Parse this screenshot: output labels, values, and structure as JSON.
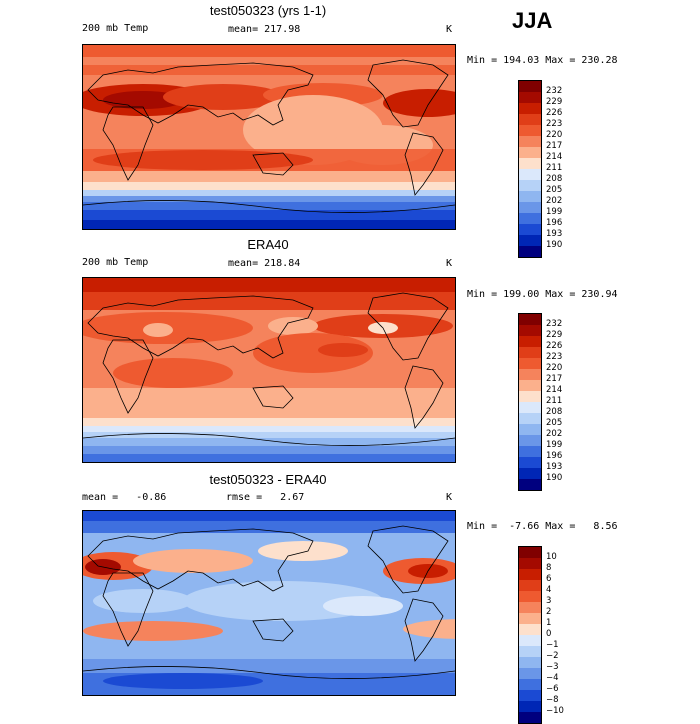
{
  "season": "JJA",
  "panels": [
    {
      "title": "test050323 (yrs 1-1)",
      "left_label": "200 mb Temp",
      "center_label": "mean= 217.98",
      "units": "K",
      "minmax": "Min = 194.03 Max = 230.28",
      "levels": [
        "232",
        "229",
        "226",
        "223",
        "220",
        "217",
        "214",
        "211",
        "208",
        "205",
        "202",
        "199",
        "196",
        "193",
        "190"
      ],
      "colors": [
        "#800000",
        "#a40a00",
        "#c81e00",
        "#e03e18",
        "#ee5a30",
        "#f5835c",
        "#fbb08c",
        "#fde0cc",
        "#dbe8fb",
        "#b6d2f7",
        "#8fb6f0",
        "#6a96e8",
        "#3f70df",
        "#1b4ad3",
        "#0026b5",
        "#00007f"
      ]
    },
    {
      "title": "ERA40",
      "left_label": "200 mb Temp",
      "center_label": "mean= 218.84",
      "units": "K",
      "minmax": "Min = 199.00 Max = 230.94",
      "levels": [
        "232",
        "229",
        "226",
        "223",
        "220",
        "217",
        "214",
        "211",
        "208",
        "205",
        "202",
        "199",
        "196",
        "193",
        "190"
      ],
      "colors": [
        "#800000",
        "#a40a00",
        "#c81e00",
        "#e03e18",
        "#ee5a30",
        "#f5835c",
        "#fbb08c",
        "#fde0cc",
        "#dbe8fb",
        "#b6d2f7",
        "#8fb6f0",
        "#6a96e8",
        "#3f70df",
        "#1b4ad3",
        "#0026b5",
        "#00007f"
      ]
    },
    {
      "title": "test050323 - ERA40",
      "left_label": "mean =   -0.86",
      "center_label": "rmse =   2.67",
      "units": "K",
      "minmax": "Min =  -7.66 Max =   8.56",
      "levels": [
        "10",
        "8",
        "6",
        "4",
        "3",
        "2",
        "1",
        "0",
        "−1",
        "−2",
        "−3",
        "−4",
        "−6",
        "−8",
        "−10"
      ],
      "colors": [
        "#800000",
        "#a40a00",
        "#c81e00",
        "#e03e18",
        "#ee5a30",
        "#f5835c",
        "#fbb08c",
        "#fde0cc",
        "#dbe8fb",
        "#b6d2f7",
        "#8fb6f0",
        "#6a96e8",
        "#3f70df",
        "#1b4ad3",
        "#0026b5",
        "#00007f"
      ]
    }
  ]
}
